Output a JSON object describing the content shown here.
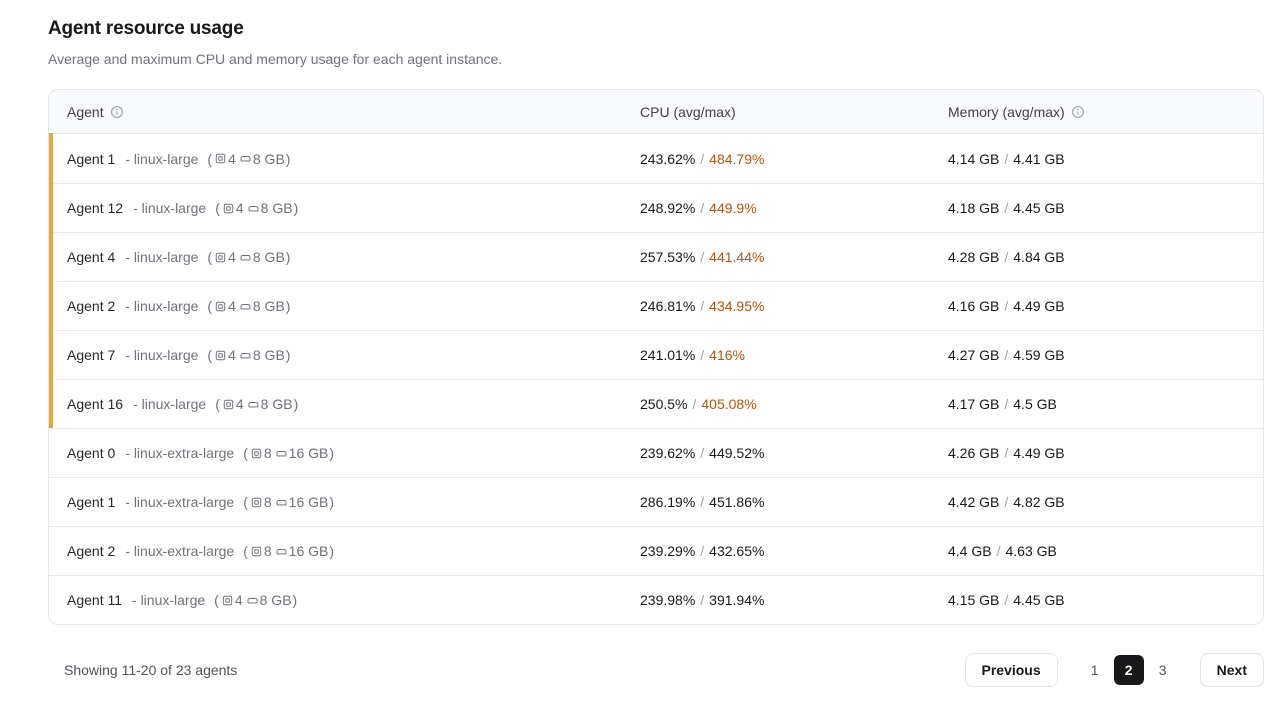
{
  "page": {
    "title": "Agent resource usage",
    "subtitle": "Average and maximum CPU and memory usage for each agent instance."
  },
  "table": {
    "headers": {
      "agent": "Agent",
      "cpu": "CPU (avg/max)",
      "memory": "Memory (avg/max)"
    },
    "spec_open": "(",
    "spec_close": ")",
    "value_separator": "/",
    "rows": [
      {
        "name": "Agent 1",
        "type": "- linux-large",
        "cpus": "4",
        "ram": "8 GB",
        "cpu_avg": "243.62%",
        "cpu_max": "484.79%",
        "mem_avg": "4.14 GB",
        "mem_max": "4.41 GB",
        "highlight": true
      },
      {
        "name": "Agent 12",
        "type": "- linux-large",
        "cpus": "4",
        "ram": "8 GB",
        "cpu_avg": "248.92%",
        "cpu_max": "449.9%",
        "mem_avg": "4.18 GB",
        "mem_max": "4.45 GB",
        "highlight": true
      },
      {
        "name": "Agent 4",
        "type": "- linux-large",
        "cpus": "4",
        "ram": "8 GB",
        "cpu_avg": "257.53%",
        "cpu_max": "441.44%",
        "mem_avg": "4.28 GB",
        "mem_max": "4.84 GB",
        "highlight": true
      },
      {
        "name": "Agent 2",
        "type": "- linux-large",
        "cpus": "4",
        "ram": "8 GB",
        "cpu_avg": "246.81%",
        "cpu_max": "434.95%",
        "mem_avg": "4.16 GB",
        "mem_max": "4.49 GB",
        "highlight": true
      },
      {
        "name": "Agent 7",
        "type": "- linux-large",
        "cpus": "4",
        "ram": "8 GB",
        "cpu_avg": "241.01%",
        "cpu_max": "416%",
        "mem_avg": "4.27 GB",
        "mem_max": "4.59 GB",
        "highlight": true
      },
      {
        "name": "Agent 16",
        "type": "- linux-large",
        "cpus": "4",
        "ram": "8 GB",
        "cpu_avg": "250.5%",
        "cpu_max": "405.08%",
        "mem_avg": "4.17 GB",
        "mem_max": "4.5 GB",
        "highlight": true
      },
      {
        "name": "Agent 0",
        "type": "- linux-extra-large",
        "cpus": "8",
        "ram": "16 GB",
        "cpu_avg": "239.62%",
        "cpu_max": "449.52%",
        "mem_avg": "4.26 GB",
        "mem_max": "4.49 GB",
        "highlight": false
      },
      {
        "name": "Agent 1",
        "type": "- linux-extra-large",
        "cpus": "8",
        "ram": "16 GB",
        "cpu_avg": "286.19%",
        "cpu_max": "451.86%",
        "mem_avg": "4.42 GB",
        "mem_max": "4.82 GB",
        "highlight": false
      },
      {
        "name": "Agent 2",
        "type": "- linux-extra-large",
        "cpus": "8",
        "ram": "16 GB",
        "cpu_avg": "239.29%",
        "cpu_max": "432.65%",
        "mem_avg": "4.4 GB",
        "mem_max": "4.63 GB",
        "highlight": false
      },
      {
        "name": "Agent 11",
        "type": "- linux-large",
        "cpus": "4",
        "ram": "8 GB",
        "cpu_avg": "239.98%",
        "cpu_max": "391.94%",
        "mem_avg": "4.15 GB",
        "mem_max": "4.45 GB",
        "highlight": false
      }
    ]
  },
  "footer": {
    "summary": "Showing 11-20 of 23 agents",
    "pagination": {
      "previous_label": "Previous",
      "next_label": "Next",
      "pages": [
        "1",
        "2",
        "3"
      ],
      "active_page": "2"
    }
  },
  "colors": {
    "highlight_bar": "#e7a83b",
    "cpu_max_warning": "#b45309",
    "active_page_bg": "#18181b"
  }
}
